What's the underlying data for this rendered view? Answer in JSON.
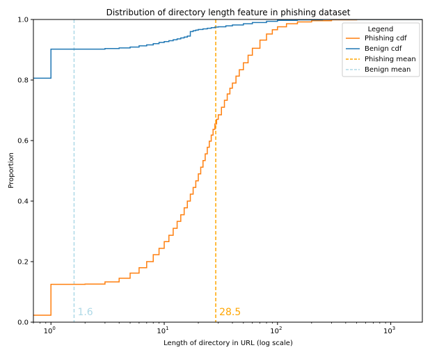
{
  "chart_data": {
    "type": "line",
    "title": "Distribution of directory length feature in phishing dataset",
    "xlabel": "Length of directory in URL (log scale)",
    "ylabel": "Proportion",
    "xscale": "log",
    "xlim": [
      0.7,
      1900
    ],
    "ylim": [
      0,
      1
    ],
    "x_ticks": [
      {
        "value": 1,
        "base": "10",
        "exp": "0"
      },
      {
        "value": 10,
        "base": "10",
        "exp": "1"
      },
      {
        "value": 100,
        "base": "10",
        "exp": "2"
      },
      {
        "value": 1000,
        "base": "10",
        "exp": "3"
      }
    ],
    "y_ticks": [
      "0.0",
      "0.2",
      "0.4",
      "0.6",
      "0.8",
      "1.0"
    ],
    "grid": false,
    "legend": {
      "title": "Legend",
      "position": "top-right",
      "entries": [
        {
          "label": "Phishing cdf",
          "color": "#ff7f0e",
          "style": "solid"
        },
        {
          "label": "Benign cdf",
          "color": "#1f77b4",
          "style": "solid"
        },
        {
          "label": "Phishing mean",
          "color": "#ffa500",
          "style": "dashed"
        },
        {
          "label": "Benign mean",
          "color": "#add8e6",
          "style": "dashed"
        }
      ]
    },
    "series": [
      {
        "name": "Phishing cdf",
        "color": "#ff7f0e",
        "step": true,
        "points": [
          [
            0.7,
            0.023
          ],
          [
            1,
            0.125
          ],
          [
            2,
            0.126
          ],
          [
            3,
            0.133
          ],
          [
            4,
            0.145
          ],
          [
            5,
            0.162
          ],
          [
            6,
            0.18
          ],
          [
            7,
            0.2
          ],
          [
            8,
            0.223
          ],
          [
            9,
            0.244
          ],
          [
            10,
            0.266
          ],
          [
            11,
            0.287
          ],
          [
            12,
            0.31
          ],
          [
            13,
            0.333
          ],
          [
            14,
            0.355
          ],
          [
            15,
            0.378
          ],
          [
            16,
            0.4
          ],
          [
            17,
            0.423
          ],
          [
            18,
            0.445
          ],
          [
            19,
            0.467
          ],
          [
            20,
            0.49
          ],
          [
            21,
            0.512
          ],
          [
            22,
            0.534
          ],
          [
            23,
            0.556
          ],
          [
            24,
            0.578
          ],
          [
            25,
            0.598
          ],
          [
            26,
            0.618
          ],
          [
            27,
            0.637
          ],
          [
            28,
            0.655
          ],
          [
            29,
            0.67
          ],
          [
            30,
            0.685
          ],
          [
            32,
            0.71
          ],
          [
            34,
            0.733
          ],
          [
            36,
            0.754
          ],
          [
            38,
            0.773
          ],
          [
            40,
            0.79
          ],
          [
            43,
            0.813
          ],
          [
            46,
            0.834
          ],
          [
            50,
            0.857
          ],
          [
            55,
            0.882
          ],
          [
            60,
            0.905
          ],
          [
            70,
            0.932
          ],
          [
            80,
            0.952
          ],
          [
            90,
            0.966
          ],
          [
            100,
            0.976
          ],
          [
            120,
            0.986
          ],
          [
            150,
            0.992
          ],
          [
            200,
            0.996
          ],
          [
            300,
            0.999
          ],
          [
            500,
            1.0
          ],
          [
            1900,
            1.0
          ]
        ]
      },
      {
        "name": "Benign cdf",
        "color": "#1f77b4",
        "step": true,
        "points": [
          [
            0.7,
            0.806
          ],
          [
            1,
            0.902
          ],
          [
            2,
            0.902
          ],
          [
            3,
            0.904
          ],
          [
            4,
            0.906
          ],
          [
            5,
            0.909
          ],
          [
            6,
            0.913
          ],
          [
            7,
            0.916
          ],
          [
            8,
            0.92
          ],
          [
            9,
            0.924
          ],
          [
            10,
            0.927
          ],
          [
            11,
            0.93
          ],
          [
            12,
            0.933
          ],
          [
            13,
            0.936
          ],
          [
            14,
            0.939
          ],
          [
            15,
            0.942
          ],
          [
            16,
            0.945
          ],
          [
            17,
            0.96
          ],
          [
            18,
            0.963
          ],
          [
            19,
            0.965
          ],
          [
            20,
            0.967
          ],
          [
            22,
            0.969
          ],
          [
            24,
            0.971
          ],
          [
            26,
            0.973
          ],
          [
            28,
            0.975
          ],
          [
            30,
            0.976
          ],
          [
            35,
            0.979
          ],
          [
            40,
            0.982
          ],
          [
            50,
            0.986
          ],
          [
            60,
            0.99
          ],
          [
            80,
            0.994
          ],
          [
            100,
            0.997
          ],
          [
            150,
            0.999
          ],
          [
            250,
            1.0
          ],
          [
            1900,
            1.0
          ]
        ]
      }
    ],
    "means": [
      {
        "name": "Phishing mean",
        "value": 28.5,
        "label": "28.5",
        "color": "#ffa500"
      },
      {
        "name": "Benign mean",
        "value": 1.6,
        "label": "1.6",
        "color": "#add8e6"
      }
    ]
  }
}
